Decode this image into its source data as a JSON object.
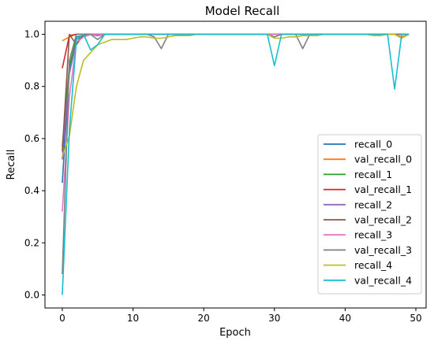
{
  "chart_data": {
    "type": "line",
    "title": "Model Recall",
    "xlabel": "Epoch",
    "ylabel": "Recall",
    "xlim": [
      -2.45,
      51.45
    ],
    "ylim": [
      -0.05,
      1.05
    ],
    "xticks": [
      0,
      10,
      20,
      30,
      40,
      50
    ],
    "yticks": [
      0.0,
      0.2,
      0.4,
      0.6,
      0.8,
      1.0
    ],
    "grid": false,
    "legend_position": "center-right",
    "x": [
      0,
      1,
      2,
      3,
      4,
      5,
      6,
      7,
      8,
      9,
      10,
      11,
      12,
      13,
      14,
      15,
      16,
      17,
      18,
      19,
      20,
      21,
      22,
      23,
      24,
      25,
      26,
      27,
      28,
      29,
      30,
      31,
      32,
      33,
      34,
      35,
      36,
      37,
      38,
      39,
      40,
      41,
      42,
      43,
      44,
      45,
      46,
      47,
      48,
      49
    ],
    "series": [
      {
        "name": "recall_0",
        "color": "#1f77b4",
        "values": [
          0.43,
          0.87,
          0.99,
          0.995,
          1,
          1,
          1,
          1,
          1,
          1,
          1,
          1,
          1,
          1,
          1,
          1,
          1,
          1,
          1,
          1,
          1,
          1,
          1,
          1,
          1,
          1,
          1,
          1,
          1,
          1,
          1,
          1,
          1,
          1,
          1,
          1,
          1,
          1,
          1,
          1,
          1,
          1,
          1,
          1,
          1,
          1,
          1,
          1,
          1,
          1
        ]
      },
      {
        "name": "val_recall_0",
        "color": "#ff7f0e",
        "values": [
          0.975,
          0.99,
          1,
          1,
          1,
          1,
          1,
          1,
          1,
          1,
          1,
          1,
          1,
          1,
          1,
          1,
          1,
          1,
          1,
          1,
          1,
          1,
          1,
          1,
          1,
          1,
          1,
          1,
          1,
          1,
          1,
          1,
          1,
          1,
          1,
          1,
          1,
          1,
          1,
          1,
          1,
          1,
          1,
          1,
          1,
          1,
          1,
          1,
          0.99,
          1
        ]
      },
      {
        "name": "recall_1",
        "color": "#2ca02c",
        "values": [
          0.57,
          0.88,
          0.98,
          0.99,
          1,
          1,
          1,
          1,
          1,
          1,
          1,
          1,
          1,
          1,
          1,
          1,
          1,
          1,
          1,
          1,
          1,
          1,
          1,
          1,
          1,
          1,
          1,
          1,
          1,
          1,
          1,
          1,
          1,
          1,
          1,
          1,
          1,
          1,
          1,
          1,
          1,
          1,
          1,
          1,
          1,
          1,
          1,
          1,
          1,
          1
        ]
      },
      {
        "name": "val_recall_1",
        "color": "#d62728",
        "values": [
          0.87,
          0.995,
          1,
          1,
          1,
          1,
          1,
          1,
          1,
          1,
          1,
          1,
          1,
          1,
          1,
          1,
          1,
          1,
          1,
          1,
          1,
          1,
          1,
          1,
          1,
          1,
          1,
          1,
          1,
          1,
          1,
          1,
          1,
          1,
          1,
          1,
          1,
          1,
          1,
          1,
          1,
          1,
          1,
          1,
          1,
          1,
          1,
          1,
          1,
          1
        ]
      },
      {
        "name": "recall_2",
        "color": "#9467bd",
        "values": [
          0.52,
          0.85,
          0.97,
          0.99,
          1,
          0.995,
          1,
          1,
          1,
          1,
          1,
          1,
          1,
          1,
          1,
          1,
          1,
          1,
          1,
          1,
          1,
          1,
          1,
          1,
          1,
          1,
          1,
          1,
          1,
          1,
          1,
          1,
          1,
          1,
          1,
          1,
          1,
          1,
          1,
          1,
          1,
          1,
          1,
          1,
          1,
          1,
          1,
          1,
          1,
          1
        ]
      },
      {
        "name": "val_recall_2",
        "color": "#8c564b",
        "values": [
          0.55,
          1,
          0.96,
          1,
          1,
          1,
          1,
          1,
          1,
          1,
          1,
          1,
          1,
          1,
          1,
          1,
          1,
          1,
          1,
          1,
          1,
          1,
          1,
          1,
          1,
          1,
          1,
          1,
          1,
          1,
          1,
          1,
          1,
          1,
          1,
          1,
          1,
          1,
          1,
          1,
          1,
          1,
          1,
          1,
          1,
          1,
          1,
          1,
          1,
          1
        ]
      },
      {
        "name": "recall_3",
        "color": "#e377c2",
        "values": [
          0.32,
          0.76,
          0.97,
          0.99,
          1,
          1,
          1,
          1,
          1,
          1,
          1,
          1,
          1,
          1,
          1,
          1,
          1,
          1,
          1,
          1,
          1,
          1,
          1,
          1,
          1,
          1,
          1,
          1,
          1,
          1,
          1,
          1,
          1,
          1,
          1,
          1,
          1,
          1,
          1,
          1,
          1,
          1,
          1,
          1,
          1,
          1,
          1,
          1,
          1,
          1
        ]
      },
      {
        "name": "val_recall_3",
        "color": "#7f7f7f",
        "values": [
          0.08,
          0.9,
          1,
          1,
          1,
          0.98,
          1,
          1,
          1,
          1,
          1,
          1,
          1,
          0.99,
          0.945,
          1,
          1,
          1,
          1,
          1,
          1,
          1,
          1,
          1,
          1,
          1,
          1,
          1,
          1,
          1,
          0.99,
          1,
          1,
          1,
          0.945,
          1,
          1,
          1,
          1,
          1,
          1,
          1,
          1,
          1,
          1,
          1,
          1,
          1,
          1,
          1
        ]
      },
      {
        "name": "recall_4",
        "color": "#bcbd22",
        "values": [
          0.53,
          0.61,
          0.8,
          0.9,
          0.93,
          0.96,
          0.97,
          0.98,
          0.98,
          0.98,
          0.985,
          0.99,
          0.99,
          0.985,
          0.985,
          0.99,
          0.995,
          0.995,
          0.995,
          1,
          1,
          1,
          1,
          1,
          1,
          1,
          1,
          1,
          1,
          1,
          0.985,
          0.985,
          0.99,
          0.99,
          0.995,
          0.995,
          0.995,
          1,
          1,
          1,
          1,
          1,
          1,
          1,
          0.995,
          0.995,
          1,
          1,
          0.985,
          1
        ]
      },
      {
        "name": "val_recall_4",
        "color": "#17becf",
        "values": [
          0.0,
          0.63,
          0.98,
          1,
          0.94,
          0.96,
          1,
          1,
          1,
          1,
          1,
          1,
          1,
          1,
          1,
          1,
          1,
          1,
          1,
          1,
          1,
          1,
          1,
          1,
          1,
          1,
          1,
          1,
          1,
          1,
          0.88,
          1,
          1,
          1,
          1,
          1,
          1,
          1,
          1,
          1,
          1,
          1,
          1,
          1,
          1,
          1,
          1,
          0.79,
          1,
          1
        ]
      }
    ]
  }
}
